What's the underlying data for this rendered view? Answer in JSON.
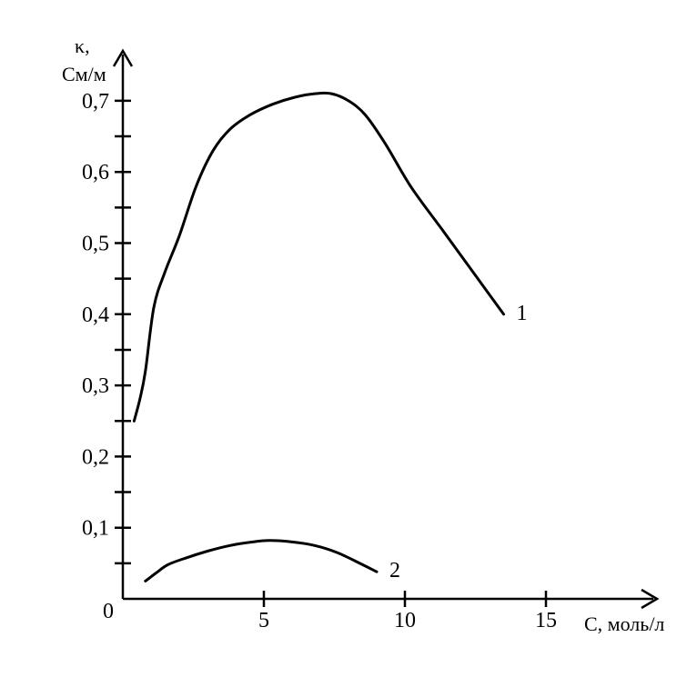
{
  "chart_data": {
    "type": "line",
    "xlabel": "C, моль/л",
    "ylabel": "κ,",
    "ylabel_unit": "См/м",
    "origin_label": "0",
    "xlim": [
      0,
      18
    ],
    "ylim": [
      0,
      0.78
    ],
    "xticks": [
      5,
      10,
      15
    ],
    "xtick_labels": [
      "5",
      "10",
      "15"
    ],
    "yticks": [
      0.1,
      0.2,
      0.3,
      0.4,
      0.5,
      0.6,
      0.7
    ],
    "ytick_labels": [
      "0,1",
      "0,2",
      "0,3",
      "0,4",
      "0,5",
      "0,6",
      "0,7"
    ],
    "grid": false,
    "series": [
      {
        "name": "1",
        "x": [
          0.4,
          0.6,
          0.8,
          1.1,
          1.5,
          2.0,
          2.6,
          3.2,
          3.8,
          4.5,
          5.3,
          6.1,
          6.8,
          7.4,
          8.0,
          8.6,
          9.3,
          10.2,
          11.3,
          12.4,
          13.5
        ],
        "y": [
          0.25,
          0.28,
          0.32,
          0.41,
          0.46,
          0.51,
          0.58,
          0.63,
          0.66,
          0.68,
          0.695,
          0.705,
          0.71,
          0.71,
          0.7,
          0.68,
          0.64,
          0.58,
          0.52,
          0.46,
          0.4
        ]
      },
      {
        "name": "2",
        "x": [
          0.8,
          1.2,
          1.6,
          2.2,
          3.0,
          3.8,
          4.6,
          5.2,
          6.0,
          6.8,
          7.6,
          8.4,
          9.0
        ],
        "y": [
          0.025,
          0.037,
          0.048,
          0.057,
          0.067,
          0.075,
          0.08,
          0.082,
          0.08,
          0.075,
          0.065,
          0.05,
          0.038
        ]
      }
    ]
  }
}
